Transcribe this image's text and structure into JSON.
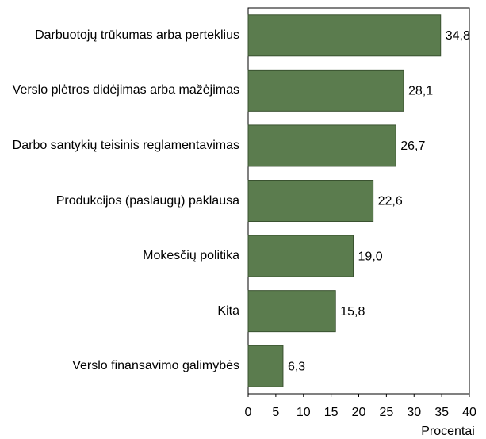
{
  "chart_data": {
    "type": "bar",
    "orientation": "horizontal",
    "categories": [
      "Darbuotojų trūkumas arba perteklius",
      "Verslo plėtros didėjimas arba mažėjimas",
      "Darbo santykių teisinis reglamentavimas",
      "Produkcijos (paslaugų) paklausa",
      "Mokesčių politika",
      "Kita",
      "Verslo finansavimo galimybės"
    ],
    "values": [
      34.8,
      28.1,
      26.7,
      22.6,
      19.0,
      15.8,
      6.3
    ],
    "value_labels": [
      "34,8",
      "28,1",
      "26,7",
      "22,6",
      "19,0",
      "15,8",
      "6,3"
    ],
    "color": "#5b7c4e",
    "xlabel": "Procentai",
    "xlim": [
      0,
      40
    ],
    "xticks": [
      0,
      5,
      10,
      15,
      20,
      25,
      30,
      35,
      40
    ],
    "grid": false
  }
}
